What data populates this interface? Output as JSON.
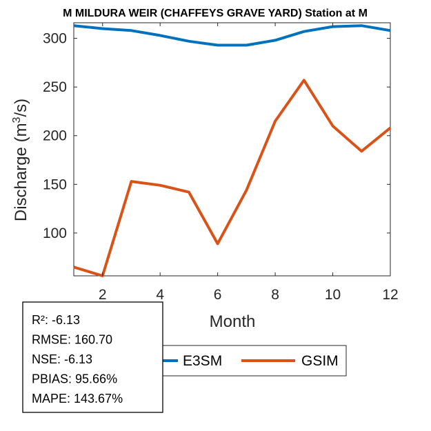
{
  "chart_data": {
    "type": "line",
    "title": "M MILDURA WEIR (CHAFFEYS GRAVE YARD)  Station at  M",
    "xlabel": "Month",
    "ylabel": "Discharge (m³/s)",
    "ylabel_parts": {
      "pre": "Discharge (m",
      "sup": "3",
      "post": "/s)"
    },
    "x": [
      1,
      2,
      3,
      4,
      5,
      6,
      7,
      8,
      9,
      10,
      11,
      12
    ],
    "xlim": [
      1,
      12
    ],
    "ylim": [
      56,
      316
    ],
    "xticks": [
      2,
      4,
      6,
      8,
      10,
      12
    ],
    "yticks": [
      100,
      150,
      200,
      250,
      300
    ],
    "grid": false,
    "legend_position": "bottom-outside",
    "series": [
      {
        "name": "E3SM",
        "color": "#0072BD",
        "values": [
          313,
          310,
          308,
          303,
          297,
          293,
          293,
          298,
          307,
          312,
          313,
          308
        ]
      },
      {
        "name": "GSIM",
        "color": "#D95319",
        "values": [
          65,
          56,
          153,
          149,
          142,
          89,
          144,
          215,
          257,
          210,
          184,
          208
        ]
      }
    ],
    "stats": [
      "R²: -6.13",
      "RMSE: 160.70",
      "NSE: -6.13",
      "PBIAS: 95.66%",
      "MAPE: 143.67%"
    ]
  }
}
